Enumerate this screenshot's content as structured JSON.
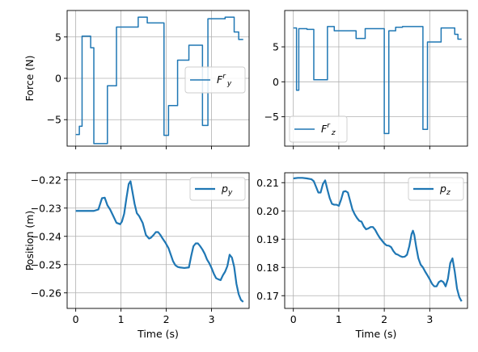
{
  "chart_data": [
    {
      "type": "line",
      "id": "force-y",
      "ylabel": "Force (N)",
      "xlabel": "",
      "xlim": [
        -0.19,
        3.83
      ],
      "ylim": [
        -8.2,
        8.2
      ],
      "xticks": [
        "0",
        "1",
        "2",
        "3"
      ],
      "xtick_values": [
        0,
        1,
        2,
        3
      ],
      "show_xtick_labels": false,
      "yticks": [
        "−5",
        "0",
        "5"
      ],
      "ytick_values": [
        -5,
        0,
        5
      ],
      "grid": true,
      "legend": {
        "label": "F^r_y",
        "base": "F",
        "sup": "r",
        "sub": "y",
        "placement": "center-right"
      },
      "series": [
        {
          "name": "F^r_y",
          "color": "#1f77b4",
          "step": true,
          "x": [
            0.0,
            0.08,
            0.14,
            0.33,
            0.4,
            0.48,
            0.7,
            0.9,
            1.0,
            1.38,
            1.58,
            1.95,
            2.05,
            2.25,
            2.5,
            2.8,
            2.92,
            3.3,
            3.5,
            3.6,
            3.7
          ],
          "y": [
            -6.8,
            -5.8,
            5.1,
            3.7,
            -7.9,
            -7.9,
            -0.9,
            6.2,
            6.2,
            7.4,
            6.7,
            -6.9,
            -3.3,
            2.2,
            4.0,
            -5.7,
            7.2,
            7.4,
            5.6,
            4.7,
            4.7
          ]
        }
      ]
    },
    {
      "type": "line",
      "id": "force-z",
      "ylabel": "",
      "xlabel": "",
      "xlim": [
        -0.19,
        3.83
      ],
      "ylim": [
        -9.2,
        10.2
      ],
      "xticks": [
        "0",
        "1",
        "2",
        "3"
      ],
      "xtick_values": [
        0,
        1,
        2,
        3
      ],
      "show_xtick_labels": false,
      "yticks": [
        "−5",
        "0",
        "5"
      ],
      "ytick_values": [
        -5,
        0,
        5
      ],
      "grid": true,
      "legend": {
        "label": "F^r_z",
        "base": "F",
        "sup": "r",
        "sub": "z",
        "placement": "bottom-left"
      },
      "series": [
        {
          "name": "F^r_z",
          "color": "#1f77b4",
          "step": true,
          "x": [
            0.0,
            0.07,
            0.12,
            0.3,
            0.45,
            0.6,
            0.75,
            0.9,
            1.2,
            1.38,
            1.58,
            1.82,
            2.0,
            2.1,
            2.25,
            2.4,
            2.85,
            2.95,
            3.05,
            3.25,
            3.55,
            3.62,
            3.7
          ],
          "y": [
            7.7,
            -1.2,
            7.6,
            7.5,
            0.3,
            0.3,
            7.9,
            7.3,
            7.3,
            6.2,
            7.6,
            7.6,
            -7.4,
            7.3,
            7.8,
            7.9,
            -6.8,
            5.7,
            5.7,
            7.7,
            6.8,
            6.1,
            6.1
          ]
        }
      ]
    },
    {
      "type": "line",
      "id": "position-y",
      "ylabel": "Position (m)",
      "xlabel": "Time (s)",
      "xlim": [
        -0.19,
        3.83
      ],
      "ylim": [
        -0.2655,
        -0.2175
      ],
      "xticks": [
        "0",
        "1",
        "2",
        "3"
      ],
      "xtick_values": [
        0,
        1,
        2,
        3
      ],
      "show_xtick_labels": true,
      "yticks": [
        "−0.22",
        "−0.23",
        "−0.24",
        "−0.25",
        "−0.26"
      ],
      "ytick_values": [
        -0.22,
        -0.23,
        -0.24,
        -0.25,
        -0.26
      ],
      "grid": true,
      "legend": {
        "label": "p_y",
        "base": "p",
        "sup": "",
        "sub": "y",
        "placement": "top-right"
      },
      "series": [
        {
          "name": "p_y",
          "color": "#1f77b4",
          "step": false,
          "x": [
            0.0,
            0.1,
            0.2,
            0.3,
            0.4,
            0.5,
            0.58,
            0.64,
            0.7,
            0.76,
            0.82,
            0.9,
            0.98,
            1.02,
            1.07,
            1.12,
            1.17,
            1.21,
            1.25,
            1.3,
            1.35,
            1.4,
            1.48,
            1.55,
            1.62,
            1.66,
            1.72,
            1.77,
            1.82,
            1.87,
            1.92,
            1.98,
            2.05,
            2.1,
            2.15,
            2.2,
            2.25,
            2.3,
            2.4,
            2.5,
            2.55,
            2.6,
            2.65,
            2.7,
            2.75,
            2.8,
            2.85,
            2.9,
            2.95,
            3.0,
            3.05,
            3.1,
            3.15,
            3.2,
            3.25,
            3.3,
            3.35,
            3.4,
            3.45,
            3.5,
            3.55,
            3.6,
            3.65,
            3.7
          ],
          "y": [
            -0.231,
            -0.231,
            -0.231,
            -0.231,
            -0.231,
            -0.2305,
            -0.2265,
            -0.2263,
            -0.229,
            -0.2305,
            -0.2325,
            -0.2352,
            -0.2357,
            -0.2348,
            -0.232,
            -0.2265,
            -0.2215,
            -0.2205,
            -0.224,
            -0.2285,
            -0.2318,
            -0.2328,
            -0.2353,
            -0.2395,
            -0.2408,
            -0.2405,
            -0.2395,
            -0.2385,
            -0.2385,
            -0.2395,
            -0.2408,
            -0.2422,
            -0.2442,
            -0.2465,
            -0.2488,
            -0.2502,
            -0.2508,
            -0.251,
            -0.2512,
            -0.251,
            -0.247,
            -0.2435,
            -0.2425,
            -0.2425,
            -0.2435,
            -0.2447,
            -0.2462,
            -0.2482,
            -0.2495,
            -0.2512,
            -0.2532,
            -0.2548,
            -0.2552,
            -0.2555,
            -0.2538,
            -0.2525,
            -0.2505,
            -0.2465,
            -0.2475,
            -0.2508,
            -0.2568,
            -0.2605,
            -0.2625,
            -0.2632
          ]
        }
      ]
    },
    {
      "type": "line",
      "id": "position-z",
      "ylabel": "",
      "xlabel": "Time (s)",
      "xlim": [
        -0.19,
        3.83
      ],
      "ylim": [
        0.1655,
        0.2135
      ],
      "xticks": [
        "0",
        "1",
        "2",
        "3"
      ],
      "xtick_values": [
        0,
        1,
        2,
        3
      ],
      "show_xtick_labels": true,
      "yticks": [
        "0.21",
        "0.20",
        "0.19",
        "0.18",
        "0.17"
      ],
      "ytick_values": [
        0.21,
        0.2,
        0.19,
        0.18,
        0.17
      ],
      "grid": true,
      "legend": {
        "label": "p_z",
        "base": "p",
        "sup": "",
        "sub": "z",
        "placement": "top-right"
      },
      "series": [
        {
          "name": "p_z",
          "color": "#1f77b4",
          "step": false,
          "x": [
            0.0,
            0.1,
            0.2,
            0.3,
            0.4,
            0.45,
            0.5,
            0.55,
            0.6,
            0.65,
            0.7,
            0.75,
            0.8,
            0.85,
            0.9,
            0.95,
            1.0,
            1.05,
            1.1,
            1.15,
            1.2,
            1.25,
            1.3,
            1.35,
            1.4,
            1.45,
            1.5,
            1.55,
            1.6,
            1.65,
            1.7,
            1.75,
            1.8,
            1.85,
            1.9,
            1.95,
            2.0,
            2.05,
            2.1,
            2.15,
            2.2,
            2.25,
            2.3,
            2.35,
            2.4,
            2.45,
            2.5,
            2.55,
            2.6,
            2.63,
            2.66,
            2.7,
            2.75,
            2.8,
            2.85,
            2.9,
            2.95,
            3.0,
            3.05,
            3.1,
            3.15,
            3.2,
            3.25,
            3.3,
            3.35,
            3.4,
            3.45,
            3.5,
            3.55,
            3.6,
            3.65,
            3.7
          ],
          "y": [
            0.2115,
            0.2117,
            0.2117,
            0.2115,
            0.2112,
            0.2105,
            0.2085,
            0.2065,
            0.2065,
            0.2095,
            0.2108,
            0.2075,
            0.2045,
            0.2025,
            0.2022,
            0.2022,
            0.2018,
            0.204,
            0.2068,
            0.207,
            0.2065,
            0.2035,
            0.2005,
            0.1988,
            0.1975,
            0.1965,
            0.1962,
            0.1945,
            0.1935,
            0.1938,
            0.1943,
            0.1943,
            0.1933,
            0.1918,
            0.1905,
            0.1895,
            0.1885,
            0.1878,
            0.1877,
            0.1872,
            0.1858,
            0.1848,
            0.1845,
            0.184,
            0.1837,
            0.1838,
            0.1845,
            0.1875,
            0.1918,
            0.193,
            0.1915,
            0.1875,
            0.1832,
            0.181,
            0.18,
            0.1785,
            0.1772,
            0.1758,
            0.1742,
            0.1733,
            0.1733,
            0.1748,
            0.1753,
            0.1748,
            0.1733,
            0.176,
            0.1815,
            0.1832,
            0.1785,
            0.1725,
            0.1695,
            0.168
          ]
        }
      ]
    }
  ]
}
